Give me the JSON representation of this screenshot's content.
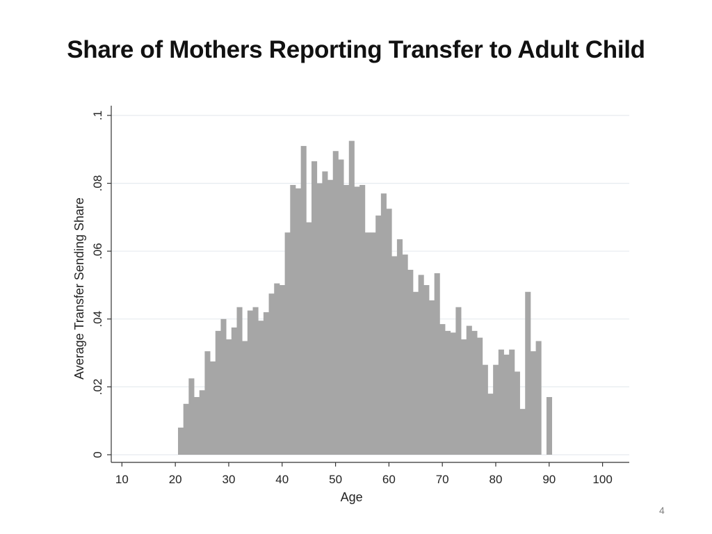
{
  "slide": {
    "title": "Share of Mothers Reporting Transfer to Adult Child",
    "page_number": "4"
  },
  "chart_data": {
    "type": "bar",
    "subtype": "histogram",
    "title": "",
    "xlabel": "Age",
    "ylabel": "Average Transfer Sending Share",
    "xlim": [
      8,
      105
    ],
    "ylim": [
      0,
      0.1
    ],
    "x_ticks": [
      10,
      20,
      30,
      40,
      50,
      60,
      70,
      80,
      90,
      100
    ],
    "x_tick_labels": [
      "10",
      "20",
      "30",
      "40",
      "50",
      "60",
      "70",
      "80",
      "90",
      "100"
    ],
    "y_ticks": [
      0,
      0.02,
      0.04,
      0.06,
      0.08,
      0.1
    ],
    "y_tick_labels": [
      "0",
      ".02",
      ".04",
      ".06",
      ".08",
      ".1"
    ],
    "grid": true,
    "bar_color": "#a6a6a6",
    "grid_color": "#e6ebef",
    "ages": [
      21,
      22,
      23,
      24,
      25,
      26,
      27,
      28,
      29,
      30,
      31,
      32,
      33,
      34,
      35,
      36,
      37,
      38,
      39,
      40,
      41,
      42,
      43,
      44,
      45,
      46,
      47,
      48,
      49,
      50,
      51,
      52,
      53,
      54,
      55,
      56,
      57,
      58,
      59,
      60,
      61,
      62,
      63,
      64,
      65,
      66,
      67,
      68,
      69,
      70,
      71,
      72,
      73,
      74,
      75,
      76,
      77,
      78,
      79,
      80,
      81,
      82,
      83,
      84,
      85,
      86,
      87,
      88,
      89,
      90
    ],
    "values": [
      0.008,
      0.015,
      0.0225,
      0.017,
      0.019,
      0.0305,
      0.0275,
      0.0365,
      0.04,
      0.034,
      0.0375,
      0.0435,
      0.0335,
      0.0425,
      0.0435,
      0.0395,
      0.042,
      0.0475,
      0.0505,
      0.05,
      0.0655,
      0.0795,
      0.0785,
      0.091,
      0.0685,
      0.0865,
      0.08,
      0.0835,
      0.081,
      0.0895,
      0.087,
      0.0795,
      0.0925,
      0.079,
      0.0795,
      0.0655,
      0.0655,
      0.0705,
      0.077,
      0.0725,
      0.0585,
      0.0635,
      0.059,
      0.0545,
      0.048,
      0.053,
      0.05,
      0.0455,
      0.0535,
      0.0385,
      0.0365,
      0.036,
      0.0435,
      0.034,
      0.038,
      0.0365,
      0.0345,
      0.0265,
      0.018,
      0.0265,
      0.031,
      0.0295,
      0.031,
      0.0245,
      0.0135,
      0.048,
      0.0305,
      0.0335,
      0,
      0.017
    ]
  }
}
